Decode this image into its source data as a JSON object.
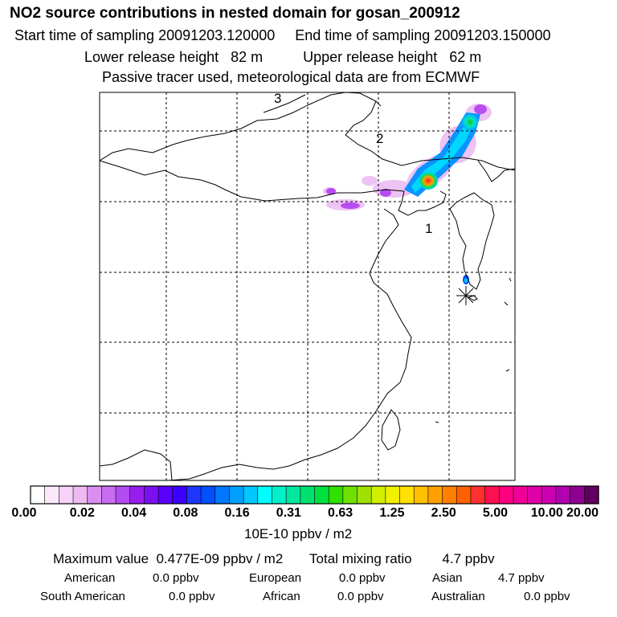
{
  "header": {
    "title": "NO2 source contributions in nested domain for gosan_200912",
    "sampling": "Start time of sampling 20091203.120000     End time of sampling 20091203.150000",
    "release": "Lower release height   82 m          Upper release height   62 m",
    "note": "Passive tracer used, meteorological data are from ECMWF"
  },
  "map": {
    "region_labels": [
      "1",
      "2",
      "3"
    ],
    "receptor_symbol": "asterisk"
  },
  "colorbar": {
    "tick_labels": [
      "0.00",
      "0.02",
      "0.04",
      "0.08",
      "0.16",
      "0.31",
      "0.63",
      "1.25",
      "2.50",
      "5.00",
      "10.00",
      "20.00"
    ],
    "units": "10E-10 ppbv / m2",
    "colors": [
      "#ffffff",
      "#fbe8fb",
      "#f6d2f6",
      "#efbaf1",
      "#d98ef0",
      "#c86df0",
      "#b34cf0",
      "#9a1df0",
      "#7a10f0",
      "#5a00ff",
      "#3a00ff",
      "#1e36ff",
      "#0050ff",
      "#0078ff",
      "#00a0ff",
      "#00c8ff",
      "#00ffff",
      "#00f0cc",
      "#00e8a0",
      "#00e070",
      "#00e040",
      "#30e000",
      "#70e000",
      "#a0e000",
      "#d0f000",
      "#f0f000",
      "#ffe000",
      "#ffc000",
      "#ffa000",
      "#ff8000",
      "#ff6000",
      "#ff3030",
      "#ff1050",
      "#ff0080",
      "#f00098",
      "#e000a8",
      "#cc00b0",
      "#b000b0",
      "#900090",
      "#600060"
    ]
  },
  "summary": {
    "max_line": "Maximum value  0.477E-09 ppbv / m2       Total mixing ratio        4.7 ppbv",
    "rows": [
      [
        {
          "label": "American",
          "value": "0.0 ppbv"
        },
        {
          "label": "European",
          "value": "0.0 ppbv"
        },
        {
          "label": "Asian",
          "value": "4.7 ppbv"
        }
      ],
      [
        {
          "label": "South American",
          "value": "0.0 ppbv"
        },
        {
          "label": "African",
          "value": "0.0 ppbv"
        },
        {
          "label": "Australian",
          "value": "0.0 ppbv"
        }
      ]
    ]
  }
}
